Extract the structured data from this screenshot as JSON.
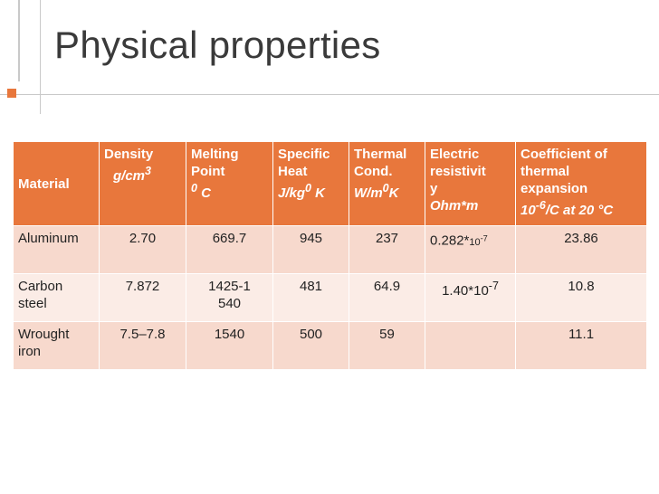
{
  "title": "Physical properties",
  "colors": {
    "accent": "#e8773c",
    "row_dark": "#f7d9cd",
    "row_light": "#fbece6"
  },
  "table": {
    "headers": [
      {
        "lines": [
          "Material"
        ]
      },
      {
        "lines": [
          "Density",
          "g/cm3"
        ]
      },
      {
        "lines": [
          "Melting",
          "Point",
          "0 C"
        ]
      },
      {
        "lines": [
          "Specific",
          "Heat",
          "J/kg0 K"
        ]
      },
      {
        "lines": [
          "Thermal",
          "Cond.",
          "W/m0K"
        ]
      },
      {
        "lines": [
          "Electric",
          "resistivit",
          "y",
          "Ohm*m"
        ]
      },
      {
        "lines": [
          "Coefficient of",
          "thermal",
          "expansion",
          "10-6/C at 20 °C"
        ]
      }
    ],
    "rows": [
      {
        "material": "Aluminum",
        "density": "2.70",
        "melting": "669.7",
        "specific_heat": "945",
        "thermal_cond": "237",
        "resistivity": "0.282*10-7",
        "expansion": "23.86"
      },
      {
        "material": "Carbon steel",
        "density": "7.872",
        "melting": "1425-1540",
        "specific_heat": "481",
        "thermal_cond": "64.9",
        "resistivity": "1.40*10-7",
        "expansion": "10.8"
      },
      {
        "material": "Wrought iron",
        "density": "7.5–7.8",
        "melting": "1540",
        "specific_heat": "500",
        "thermal_cond": "59",
        "resistivity": "",
        "expansion": "11.1"
      }
    ]
  }
}
